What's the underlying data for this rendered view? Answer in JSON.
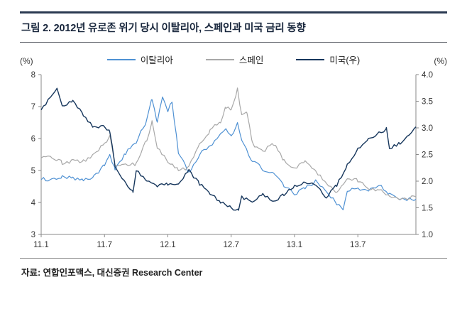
{
  "figure": {
    "title": "그림 2. 2012년 유로존 위기 당시 이탈리아, 스페인과 미국 금리 동향"
  },
  "axis_units": {
    "left": "(%)",
    "right": "(%)"
  },
  "source": {
    "text": "자료: 연합인포맥스, 대신증권 Research Center"
  },
  "chart_data": {
    "type": "line",
    "title": "2012년 유로존 위기 당시 이탈리아, 스페인과 미국 금리 동향",
    "x_unit": "months since 2011-01 (label format YY.M)",
    "x_range": [
      0,
      35.5
    ],
    "x_ticks": [
      {
        "t": 0,
        "label": "11.1"
      },
      {
        "t": 6,
        "label": "11.7"
      },
      {
        "t": 12,
        "label": "12.1"
      },
      {
        "t": 18,
        "label": "12.7"
      },
      {
        "t": 24,
        "label": "13.1"
      },
      {
        "t": 30,
        "label": "13.7"
      }
    ],
    "left_axis": {
      "unit": "(%)",
      "min": 3,
      "max": 8,
      "ticks": [
        3,
        4,
        5,
        6,
        7,
        8
      ]
    },
    "right_axis": {
      "unit": "(%)",
      "min": 1.0,
      "max": 4.0,
      "ticks": [
        1.0,
        1.5,
        2.0,
        2.5,
        3.0,
        3.5,
        4.0
      ]
    },
    "grid": false,
    "legend_position": "top-center",
    "series": [
      {
        "name": "이탈리아",
        "axis": "left",
        "color": "#4f91d3",
        "width": 1.2,
        "noise": 0.12,
        "points": [
          [
            0,
            4.75
          ],
          [
            1,
            4.7
          ],
          [
            2,
            4.8
          ],
          [
            3,
            4.75
          ],
          [
            4,
            4.7
          ],
          [
            5,
            4.8
          ],
          [
            6,
            5.2
          ],
          [
            6.5,
            5.55
          ],
          [
            7,
            5.0
          ],
          [
            8,
            5.55
          ],
          [
            9,
            5.9
          ],
          [
            10,
            6.55
          ],
          [
            10.5,
            7.25
          ],
          [
            11,
            6.5
          ],
          [
            11.5,
            7.3
          ],
          [
            12,
            6.85
          ],
          [
            12.4,
            7.15
          ],
          [
            12.8,
            6.1
          ],
          [
            13,
            5.55
          ],
          [
            14,
            4.95
          ],
          [
            15,
            5.5
          ],
          [
            16,
            5.75
          ],
          [
            17,
            6.1
          ],
          [
            17.5,
            6.3
          ],
          [
            18,
            6.05
          ],
          [
            18.6,
            6.5
          ],
          [
            19,
            5.95
          ],
          [
            20,
            5.3
          ],
          [
            21,
            5.05
          ],
          [
            22,
            4.9
          ],
          [
            23,
            4.55
          ],
          [
            24,
            4.25
          ],
          [
            25,
            4.45
          ],
          [
            26,
            4.65
          ],
          [
            27,
            4.35
          ],
          [
            28,
            3.95
          ],
          [
            28.6,
            3.8
          ],
          [
            29,
            4.35
          ],
          [
            30,
            4.45
          ],
          [
            31,
            4.35
          ],
          [
            32,
            4.55
          ],
          [
            33,
            4.25
          ],
          [
            34,
            4.1
          ],
          [
            35.5,
            4.1
          ]
        ]
      },
      {
        "name": "스페인",
        "axis": "left",
        "color": "#a8a8a8",
        "width": 1.2,
        "noise": 0.12,
        "points": [
          [
            0,
            5.45
          ],
          [
            1,
            5.4
          ],
          [
            2,
            5.25
          ],
          [
            3,
            5.3
          ],
          [
            4,
            5.3
          ],
          [
            5,
            5.5
          ],
          [
            6,
            5.85
          ],
          [
            6.5,
            6.05
          ],
          [
            7,
            5.2
          ],
          [
            8,
            5.2
          ],
          [
            9,
            5.2
          ],
          [
            10,
            5.95
          ],
          [
            10.5,
            6.5
          ],
          [
            11,
            5.75
          ],
          [
            12,
            5.3
          ],
          [
            13,
            5.0
          ],
          [
            14,
            5.1
          ],
          [
            15,
            5.8
          ],
          [
            16,
            6.25
          ],
          [
            17,
            6.55
          ],
          [
            17.5,
            7.0
          ],
          [
            18,
            6.85
          ],
          [
            18.6,
            7.55
          ],
          [
            19,
            6.7
          ],
          [
            19.5,
            6.85
          ],
          [
            20,
            5.85
          ],
          [
            21,
            5.6
          ],
          [
            22,
            5.85
          ],
          [
            23,
            5.3
          ],
          [
            24,
            5.05
          ],
          [
            25,
            5.3
          ],
          [
            26,
            4.95
          ],
          [
            27,
            4.65
          ],
          [
            28,
            4.3
          ],
          [
            29,
            4.7
          ],
          [
            30,
            4.7
          ],
          [
            31,
            4.45
          ],
          [
            32,
            4.4
          ],
          [
            33,
            4.2
          ],
          [
            34,
            4.1
          ],
          [
            35.5,
            4.18
          ]
        ]
      },
      {
        "name": "미국(우)",
        "axis": "right",
        "color": "#16365c",
        "width": 1.4,
        "noise": 0.06,
        "points": [
          [
            0,
            3.35
          ],
          [
            1,
            3.6
          ],
          [
            1.5,
            3.72
          ],
          [
            2,
            3.42
          ],
          [
            3,
            3.5
          ],
          [
            4,
            3.25
          ],
          [
            5,
            3.0
          ],
          [
            6,
            3.02
          ],
          [
            6.5,
            2.95
          ],
          [
            7,
            2.3
          ],
          [
            8,
            1.95
          ],
          [
            8.7,
            1.8
          ],
          [
            9,
            2.2
          ],
          [
            10,
            2.0
          ],
          [
            11,
            1.9
          ],
          [
            12,
            1.95
          ],
          [
            13,
            1.97
          ],
          [
            14,
            2.2
          ],
          [
            15,
            1.95
          ],
          [
            16,
            1.78
          ],
          [
            17,
            1.6
          ],
          [
            18,
            1.5
          ],
          [
            18.7,
            1.45
          ],
          [
            19,
            1.7
          ],
          [
            20,
            1.62
          ],
          [
            21,
            1.75
          ],
          [
            22,
            1.62
          ],
          [
            23,
            1.75
          ],
          [
            24,
            1.9
          ],
          [
            25,
            1.97
          ],
          [
            26,
            1.93
          ],
          [
            27,
            1.7
          ],
          [
            28,
            1.93
          ],
          [
            29,
            2.3
          ],
          [
            30,
            2.6
          ],
          [
            31,
            2.8
          ],
          [
            32,
            2.9
          ],
          [
            32.7,
            2.98
          ],
          [
            33,
            2.62
          ],
          [
            34,
            2.72
          ],
          [
            35.5,
            3.02
          ]
        ]
      }
    ]
  }
}
